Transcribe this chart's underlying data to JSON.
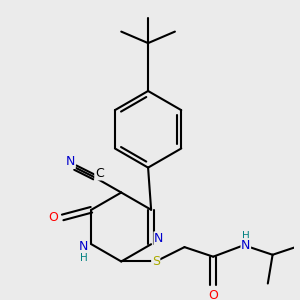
{
  "bg_color": "#ebebeb",
  "bond_color": "#000000",
  "bond_width": 1.5,
  "atom_colors": {
    "N": "#0000cc",
    "O": "#ff0000",
    "S": "#aaaa00",
    "H": "#008080",
    "C": "#000000"
  },
  "font_size_main": 9,
  "font_size_sub": 7.5
}
